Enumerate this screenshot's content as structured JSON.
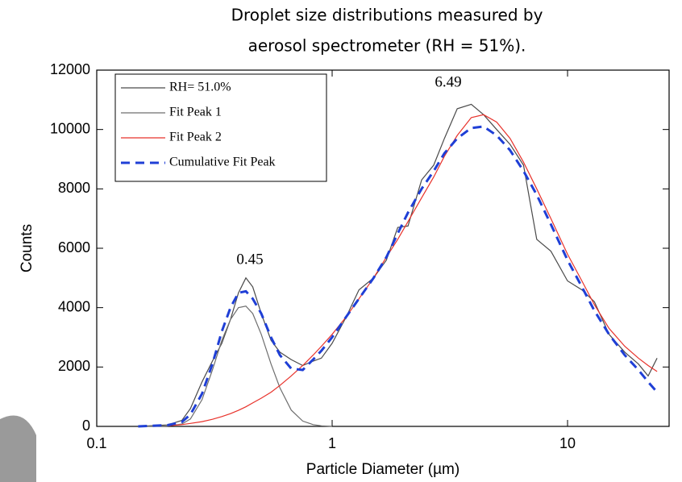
{
  "chart_data": {
    "type": "line",
    "title": "Droplet size distributions measured by",
    "subtitle": "aerosol spectrometer (RH = 51%).",
    "x_label": "Particle Diameter (µm)",
    "y_label": "Counts",
    "x_scale": "log",
    "legend": "upper left",
    "xlim": [
      0.1,
      27
    ],
    "xticks": [
      0.1,
      1,
      10
    ],
    "ylim": [
      0,
      12000
    ],
    "yticks": [
      0,
      2000,
      4000,
      6000,
      8000,
      10000,
      12000
    ],
    "x": [
      0.15,
      0.2,
      0.23,
      0.25,
      0.28,
      0.31,
      0.34,
      0.37,
      0.4,
      0.43,
      0.46,
      0.5,
      0.55,
      0.6,
      0.67,
      0.75,
      0.83,
      0.9,
      1.0,
      1.15,
      1.3,
      1.5,
      1.7,
      1.9,
      2.1,
      2.4,
      2.7,
      3.0,
      3.4,
      3.9,
      4.4,
      5.0,
      5.7,
      6.5,
      7.4,
      8.5,
      10,
      11.5,
      13,
      15,
      17.5,
      20,
      22,
      24
    ],
    "series": [
      {
        "name": "RH= 51.0%",
        "color": "#4a4a4a",
        "style": "solid",
        "values": [
          0,
          50,
          200,
          600,
          1500,
          2200,
          2800,
          3600,
          4500,
          5000,
          4700,
          3800,
          2900,
          2500,
          2250,
          2050,
          2200,
          2300,
          2800,
          3700,
          4600,
          5000,
          5600,
          6700,
          6750,
          8300,
          8800,
          9700,
          10700,
          10850,
          10500,
          10000,
          9500,
          8800,
          6300,
          5900,
          4900,
          4600,
          4200,
          3100,
          2500,
          2100,
          1700,
          2300
        ]
      },
      {
        "name": "Fit Peak 1",
        "color": "#6e6e6e",
        "style": "solid",
        "values": [
          0,
          10,
          80,
          250,
          900,
          1900,
          2900,
          3600,
          4000,
          4050,
          3800,
          3100,
          2100,
          1300,
          550,
          180,
          60,
          20,
          0,
          null,
          null,
          null,
          null,
          null,
          null,
          null,
          null,
          null,
          null,
          null,
          null,
          null,
          null,
          null,
          null,
          null,
          null,
          null,
          null,
          null,
          null,
          null,
          null,
          null
        ]
      },
      {
        "name": "Fit Peak 2",
        "color": "#e8322b",
        "style": "solid",
        "values": [
          null,
          20,
          60,
          100,
          160,
          240,
          330,
          430,
          540,
          660,
          790,
          950,
          1150,
          1380,
          1700,
          2050,
          2400,
          2700,
          3100,
          3700,
          4300,
          5000,
          5700,
          6300,
          6900,
          7700,
          8400,
          9100,
          9800,
          10400,
          10500,
          10250,
          9700,
          8900,
          8000,
          7000,
          5800,
          4900,
          4100,
          3300,
          2700,
          2300,
          2050,
          1850
        ]
      },
      {
        "name": "Cumulative Fit Peak",
        "color": "#1f3fd6",
        "style": "dashed",
        "values": [
          0,
          40,
          150,
          400,
          1100,
          2100,
          3200,
          4000,
          4500,
          4550,
          4300,
          3800,
          3000,
          2400,
          1950,
          1900,
          2250,
          2550,
          3000,
          3700,
          4300,
          5000,
          5700,
          6500,
          7200,
          8000,
          8600,
          9200,
          9700,
          10050,
          10100,
          9800,
          9300,
          8600,
          7800,
          6800,
          5600,
          4700,
          3900,
          3100,
          2400,
          1900,
          1500,
          1150
        ]
      }
    ],
    "annotations": [
      {
        "text": "0.45",
        "color": "#e8322b"
      },
      {
        "text": "6.49",
        "color": "#e8322b"
      }
    ]
  }
}
